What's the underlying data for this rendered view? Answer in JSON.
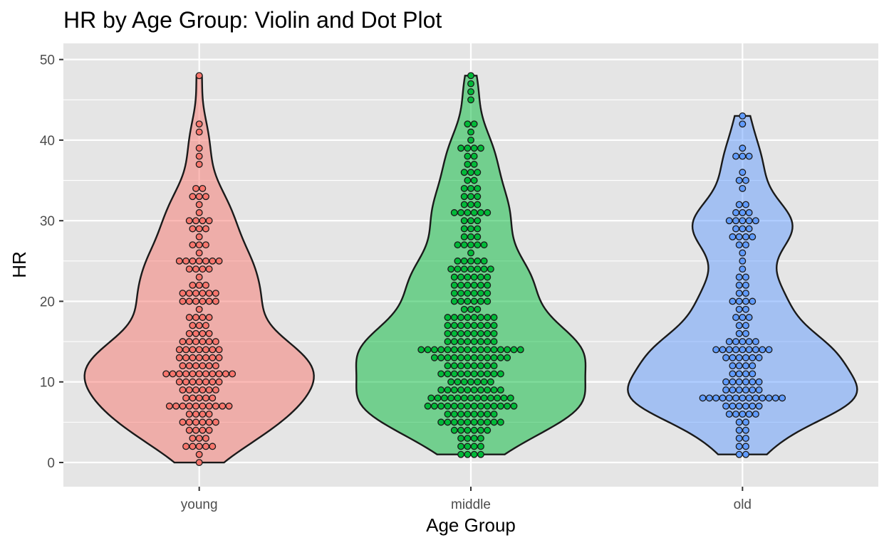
{
  "chart_data": {
    "type": "violin",
    "overlay": "dotplot",
    "title": "HR by Age Group: Violin and Dot Plot",
    "xlabel": "Age Group",
    "ylabel": "HR",
    "ylim": [
      -3,
      52
    ],
    "yticks": [
      "0",
      "10",
      "20",
      "30",
      "40",
      "50"
    ],
    "grid": true,
    "legend": "none",
    "categories": [
      "young",
      "middle",
      "old"
    ],
    "colors": {
      "young": "#F8766D",
      "middle": "#00BA38",
      "old": "#619CFF",
      "panel_background": "#E5E5E5",
      "grid": "#FFFFFF",
      "outline": "#1A1A1A"
    },
    "series": [
      {
        "name": "young",
        "range": [
          0,
          48
        ],
        "counts": {
          "0": 1,
          "1": 1,
          "2": 5,
          "3": 3,
          "4": 4,
          "5": 6,
          "6": 4,
          "7": 10,
          "8": 5,
          "9": 6,
          "10": 7,
          "11": 11,
          "12": 6,
          "13": 7,
          "14": 7,
          "15": 6,
          "16": 4,
          "17": 3,
          "18": 4,
          "19": 1,
          "20": 6,
          "21": 6,
          "22": 3,
          "23": 1,
          "24": 4,
          "25": 7,
          "26": 1,
          "27": 3,
          "28": 1,
          "29": 3,
          "30": 4,
          "31": 1,
          "32": 1,
          "33": 3,
          "34": 2,
          "37": 1,
          "38": 1,
          "39": 1,
          "41": 1,
          "42": 1,
          "48": 1
        }
      },
      {
        "name": "middle",
        "range": [
          1,
          48
        ],
        "counts": {
          "1": 4,
          "2": 4,
          "3": 4,
          "4": 6,
          "5": 10,
          "6": 8,
          "7": 14,
          "8": 13,
          "9": 10,
          "10": 7,
          "11": 10,
          "12": 8,
          "13": 12,
          "14": 16,
          "15": 8,
          "16": 8,
          "17": 8,
          "18": 8,
          "19": 3,
          "20": 6,
          "21": 6,
          "22": 6,
          "23": 6,
          "24": 7,
          "25": 5,
          "26": 1,
          "27": 5,
          "28": 3,
          "29": 3,
          "30": 3,
          "31": 6,
          "32": 3,
          "33": 3,
          "34": 3,
          "35": 2,
          "36": 3,
          "37": 2,
          "38": 2,
          "39": 4,
          "40": 1,
          "41": 1,
          "42": 2,
          "45": 1,
          "46": 1,
          "47": 1,
          "48": 1
        }
      },
      {
        "name": "old",
        "range": [
          1,
          43
        ],
        "counts": {
          "1": 2,
          "2": 2,
          "3": 2,
          "4": 2,
          "5": 2,
          "6": 5,
          "7": 6,
          "8": 13,
          "9": 6,
          "10": 6,
          "11": 4,
          "12": 4,
          "13": 6,
          "14": 9,
          "15": 5,
          "16": 2,
          "17": 2,
          "18": 3,
          "19": 2,
          "20": 4,
          "21": 2,
          "22": 2,
          "23": 2,
          "24": 1,
          "25": 1,
          "26": 1,
          "27": 2,
          "28": 4,
          "29": 3,
          "30": 5,
          "31": 3,
          "32": 2,
          "34": 1,
          "35": 2,
          "36": 1,
          "38": 3,
          "39": 1,
          "42": 1,
          "43": 1
        }
      }
    ]
  }
}
